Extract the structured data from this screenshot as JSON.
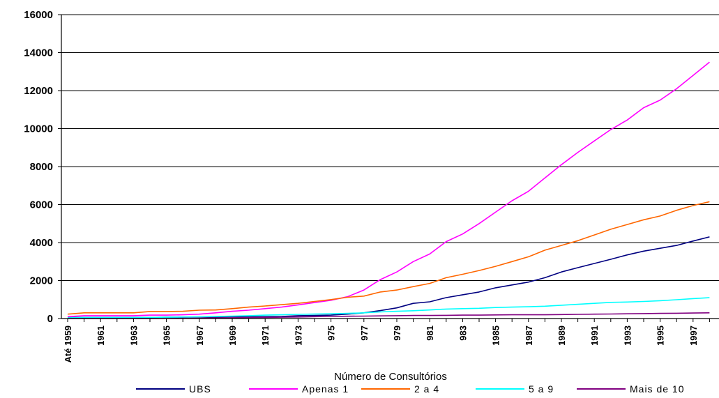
{
  "chart_data": {
    "type": "line",
    "xlabel": "Número de Consultórios",
    "ylabel": "",
    "ylim": [
      0,
      16000
    ],
    "yticks": [
      0,
      2000,
      4000,
      6000,
      8000,
      10000,
      12000,
      14000,
      16000
    ],
    "grid": true,
    "legend_position": "bottom",
    "categories": [
      "Até 1959",
      "1960",
      "1961",
      "1962",
      "1963",
      "1964",
      "1965",
      "1966",
      "1967",
      "1968",
      "1969",
      "1970",
      "1971",
      "1972",
      "1973",
      "1974",
      "1975",
      "1976",
      "1977",
      "1978",
      "1979",
      "1980",
      "1981",
      "1982",
      "1983",
      "1984",
      "1985",
      "1986",
      "1987",
      "1988",
      "1989",
      "1990",
      "1991",
      "1992",
      "1993",
      "1994",
      "1995",
      "1996",
      "1997",
      "1998"
    ],
    "xtick_labels": [
      "Até 1959",
      "1961",
      "1963",
      "1965",
      "1967",
      "1969",
      "1971",
      "1973",
      "975",
      "977",
      "979",
      "981",
      "983",
      "1985",
      "1987",
      "1989",
      "1991",
      "1993",
      "1995",
      "1997"
    ],
    "series": [
      {
        "name": "UBS",
        "color": "#000080",
        "values": [
          50,
          60,
          60,
          60,
          60,
          60,
          70,
          70,
          80,
          80,
          90,
          90,
          100,
          110,
          150,
          160,
          180,
          230,
          300,
          420,
          560,
          800,
          880,
          1100,
          1250,
          1400,
          1620,
          1770,
          1920,
          2150,
          2450,
          2680,
          2900,
          3120,
          3350,
          3550,
          3700,
          3850,
          4080,
          4300
        ]
      },
      {
        "name": "Apenas 1",
        "color": "#ff00ff",
        "values": [
          100,
          150,
          150,
          150,
          150,
          180,
          180,
          200,
          230,
          300,
          380,
          440,
          520,
          600,
          720,
          840,
          960,
          1150,
          1500,
          2050,
          2450,
          3000,
          3400,
          4050,
          4450,
          5000,
          5600,
          6200,
          6700,
          7400,
          8100,
          8750,
          9350,
          9950,
          10450,
          11100,
          11500,
          12100,
          12800,
          13500
        ]
      },
      {
        "name": "2 a 4",
        "color": "#ff6600",
        "values": [
          230,
          300,
          300,
          300,
          300,
          370,
          370,
          380,
          440,
          450,
          520,
          600,
          660,
          730,
          800,
          900,
          1000,
          1120,
          1180,
          1400,
          1500,
          1680,
          1850,
          2150,
          2330,
          2530,
          2750,
          3000,
          3250,
          3600,
          3850,
          4100,
          4400,
          4700,
          4950,
          5200,
          5400,
          5700,
          5950,
          6150
        ]
      },
      {
        "name": "5 a 9",
        "color": "#00ffff",
        "values": [
          40,
          50,
          50,
          50,
          50,
          60,
          70,
          80,
          90,
          110,
          130,
          150,
          180,
          200,
          220,
          240,
          250,
          270,
          300,
          350,
          380,
          410,
          450,
          500,
          520,
          540,
          580,
          600,
          620,
          650,
          700,
          750,
          800,
          850,
          870,
          900,
          940,
          990,
          1050,
          1100
        ]
      },
      {
        "name": "Mais de 10",
        "color": "#800080",
        "values": [
          0,
          0,
          0,
          0,
          0,
          0,
          0,
          10,
          20,
          30,
          40,
          50,
          60,
          70,
          80,
          100,
          110,
          120,
          130,
          140,
          150,
          160,
          160,
          170,
          180,
          180,
          190,
          200,
          200,
          200,
          210,
          220,
          230,
          240,
          250,
          260,
          270,
          280,
          290,
          300
        ]
      }
    ]
  }
}
